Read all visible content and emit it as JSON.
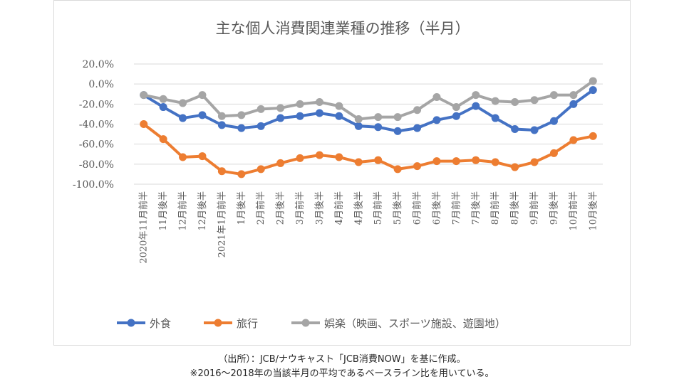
{
  "chart_data": {
    "type": "line",
    "title": "主な個人消費関連業種の推移（半月）",
    "xlabel": "",
    "ylabel": "",
    "ylim": [
      -100,
      20
    ],
    "yticks": [
      "20.0%",
      "0.0%",
      "-20.0%",
      "-40.0%",
      "-60.0%",
      "-80.0%",
      "-100.0%"
    ],
    "ytick_values": [
      20,
      0,
      -20,
      -40,
      -60,
      -80,
      -100
    ],
    "grid": true,
    "legend_position": "bottom",
    "categories": [
      "2020年11月前半",
      "11月後半",
      "12月前半",
      "12月後半",
      "2021年1月前半",
      "1月後半",
      "2月前半",
      "2月後半",
      "3月前半",
      "3月後半",
      "4月前半",
      "4月後半",
      "5月前半",
      "5月後半",
      "6月前半",
      "6月後半",
      "7月前半",
      "7月後半",
      "8月前半",
      "8月後半",
      "9月前半",
      "9月後半",
      "10月前半",
      "10月後半"
    ],
    "series": [
      {
        "name": "外食",
        "color": "#4472c4",
        "values": [
          -11,
          -23,
          -34,
          -31,
          -41,
          -44,
          -42,
          -34,
          -32,
          -29,
          -32,
          -42,
          -43,
          -47,
          -44,
          -36,
          -32,
          -22,
          -34,
          -45,
          -46,
          -37,
          -20,
          -6
        ]
      },
      {
        "name": "旅行",
        "color": "#ed7d31",
        "values": [
          -40,
          -55,
          -73,
          -72,
          -87,
          -90,
          -85,
          -79,
          -74,
          -71,
          -73,
          -78,
          -76,
          -85,
          -82,
          -77,
          -77,
          -76,
          -78,
          -83,
          -78,
          -69,
          -56,
          -52
        ]
      },
      {
        "name": "娯楽（映画、スポーツ施設、遊園地）",
        "color": "#a5a5a5",
        "values": [
          -11,
          -15,
          -19,
          -11,
          -32,
          -31,
          -25,
          -24,
          -20,
          -18,
          -22,
          -35,
          -33,
          -33,
          -26,
          -13,
          -23,
          -11,
          -17,
          -18,
          -16,
          -11,
          -11,
          3
        ]
      }
    ]
  },
  "footer": {
    "source": "（出所）：JCB/ナウキャスト「JCB消費NOW」を基に作成。",
    "note": "※2016～2018年の当該半月の平均であるベースライン比を用いている。"
  }
}
